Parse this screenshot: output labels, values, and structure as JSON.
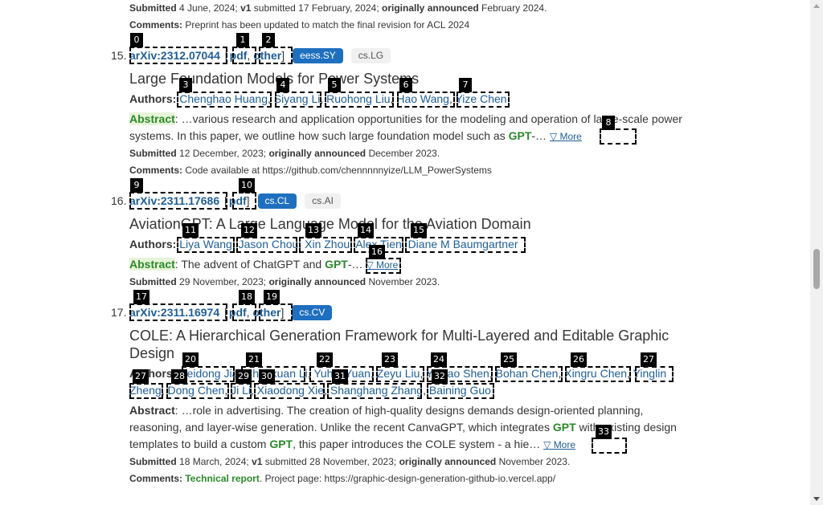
{
  "top": {
    "submitted_label": "Submitted",
    "submitted": "4 June, 2024;",
    "v1": "v1",
    "v1_text": "submitted 17 February, 2024;",
    "announced_label": "originally announced",
    "announced": "February 2024.",
    "comments_label": "Comments:",
    "comments": "Preprint has been updated to match the final revision for ACL 2024"
  },
  "r15": {
    "num": "15.",
    "id": "arXiv:2312.07044",
    "pdf": "pdf",
    "other": "other",
    "tag1": "eess.SY",
    "tag2": "cs.LG",
    "title": "Large Foundation Models for Power Systems",
    "authors_label": "Authors:",
    "authors": [
      "Chenghao Huang",
      "Siyang Li",
      "Ruohong Liu",
      "Hao Wang",
      "Yize Chen"
    ],
    "abstract_label": "Abstract",
    "abstract_a": ": …various research and application opportunities for the modeling and operation of large-scale power systems. In this paper, we outline how such large foundation model such as ",
    "gpt": "GPT",
    "abstract_b": "-…",
    "more": "▽ More",
    "submitted": "12 December, 2023;",
    "announced": "December 2023.",
    "comments": "Code available at https://github.com/chennnnnyize/LLM_PowerSystems"
  },
  "r16": {
    "num": "16.",
    "id": "arXiv:2311.17686",
    "pdf": "pdf",
    "tag1": "cs.CL",
    "tag2": "cs.AI",
    "title": "AviationGPT: A Large Language Model for the Aviation Domain",
    "authors": [
      "Liya Wang",
      "Jason Chou",
      "Xin Zhou",
      "Alex Tien",
      "Diane M Baumgartner"
    ],
    "abstract_a": ": The advent of ChatGPT and ",
    "gpt": "GPT",
    "abstract_b": "-…",
    "more": "▽ More",
    "submitted": "29 November, 2023;",
    "announced": "November 2023."
  },
  "r17": {
    "num": "17.",
    "id": "arXiv:2311.16974",
    "pdf": "pdf",
    "other": "other",
    "tag1": "cs.CV",
    "title": "COLE: A Hierarchical Generation Framework for Multi-Layered and Editable Graphic Design",
    "authors_line1": [
      "Peidong Jia",
      "Chenxuan Li",
      "Yuhui Yuan",
      "Zeyu Liu",
      "Yichao Shen",
      "Bohan Chen",
      "Xingru Chen",
      "Yinglin"
    ],
    "authors_line2": [
      "Zheng",
      "Dong Chen",
      "Ji Li",
      "Xiaodong Xie",
      "Shanghang Zhang",
      "Baining Guo"
    ],
    "abstract_a": ": …role in advertising. The creation of high-quality designs demands design-oriented planning, reasoning, and layer-wise generation. Unlike the recent CanvaGPT, which integrates ",
    "gpt": "GPT",
    "abstract_b": " with existing design templates to build a custom ",
    "abstract_c": ", this paper introduces the COLE system - a hie…",
    "more": "▽ More",
    "submitted": "18 March, 2024;",
    "v1_text": "submitted 28 November, 2023;",
    "announced": "November 2023.",
    "comments_hl": "Technical report",
    "comments": ". Project page: https://graphic-design-generation-github-io.vercel.app/"
  },
  "badges": [
    "0",
    "1",
    "2",
    "3",
    "4",
    "5",
    "6",
    "7",
    "8",
    "9",
    "10",
    "11",
    "12",
    "13",
    "14",
    "15",
    "16",
    "17",
    "18",
    "19",
    "20",
    "21",
    "22",
    "23",
    "24",
    "25",
    "26",
    "27",
    "27",
    "28",
    "29",
    "30",
    "31",
    "32",
    "33"
  ]
}
